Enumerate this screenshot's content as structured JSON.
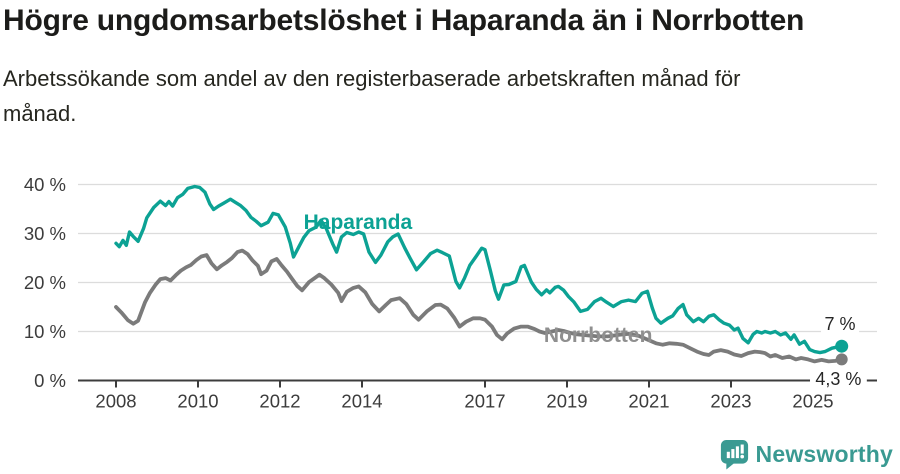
{
  "header": {
    "title": "Högre ungdomsarbetslöshet i Haparanda än i Norrbotten",
    "subtitle_lines": [
      "Arbetssökande som andel av den registerbaserade arbetskraften månad för",
      "månad."
    ]
  },
  "logo": {
    "text": "Newsworthy",
    "color": "#3a9a92"
  },
  "colors": {
    "haparanda": "#0ca294",
    "norrbotten": "#7b7b7b",
    "norrbotten_label": "#8f8f8f",
    "grid": "#dcdcdc",
    "axis": "#3c3c3c",
    "tick_text": "#3c3c3c",
    "annotation_text": "#262626"
  },
  "chart_data": {
    "type": "line",
    "title": "Högre ungdomsarbetslöshet i Haparanda än i Norrbotten",
    "subtitle": "Arbetssökande som andel av den registerbaserade arbetskraften månad för månad.",
    "xlabel": "",
    "ylabel": "",
    "ylim": [
      0,
      40
    ],
    "xlim": [
      2007.1,
      2026.6
    ],
    "grid": "horizontal",
    "legend_position": "inline-labels",
    "y_ticks": [
      {
        "value": 0,
        "label": "0 %"
      },
      {
        "value": 10,
        "label": "10 %"
      },
      {
        "value": 20,
        "label": "20 %"
      },
      {
        "value": 30,
        "label": "30 %"
      },
      {
        "value": 40,
        "label": "40 %"
      }
    ],
    "x_ticks": [
      {
        "value": 2008,
        "label": "2008"
      },
      {
        "value": 2010,
        "label": "2010"
      },
      {
        "value": 2012,
        "label": "2012"
      },
      {
        "value": 2014,
        "label": "2014"
      },
      {
        "value": 2017,
        "label": "2017"
      },
      {
        "value": 2019,
        "label": "2019"
      },
      {
        "value": 2021,
        "label": "2021"
      },
      {
        "value": 2023,
        "label": "2023"
      },
      {
        "value": 2025,
        "label": "2025"
      }
    ],
    "series": [
      {
        "name": "Norrbotten",
        "color": "#7b7b7b",
        "stroke_width": 3.8,
        "end_dot_radius": 6,
        "points": [
          [
            2008.0,
            15.0
          ],
          [
            2008.13,
            13.9
          ],
          [
            2008.29,
            12.3
          ],
          [
            2008.42,
            11.6
          ],
          [
            2008.54,
            12.2
          ],
          [
            2008.71,
            16.0
          ],
          [
            2008.83,
            17.9
          ],
          [
            2008.96,
            19.5
          ],
          [
            2009.08,
            20.7
          ],
          [
            2009.21,
            20.9
          ],
          [
            2009.33,
            20.4
          ],
          [
            2009.46,
            21.5
          ],
          [
            2009.58,
            22.4
          ],
          [
            2009.71,
            23.1
          ],
          [
            2009.83,
            23.6
          ],
          [
            2009.96,
            24.6
          ],
          [
            2010.08,
            25.3
          ],
          [
            2010.21,
            25.6
          ],
          [
            2010.33,
            23.9
          ],
          [
            2010.46,
            22.7
          ],
          [
            2010.58,
            23.5
          ],
          [
            2010.71,
            24.2
          ],
          [
            2010.83,
            25.0
          ],
          [
            2010.96,
            26.2
          ],
          [
            2011.08,
            26.5
          ],
          [
            2011.21,
            25.8
          ],
          [
            2011.33,
            24.5
          ],
          [
            2011.46,
            23.4
          ],
          [
            2011.54,
            21.7
          ],
          [
            2011.67,
            22.4
          ],
          [
            2011.79,
            24.3
          ],
          [
            2011.92,
            24.8
          ],
          [
            2012.04,
            23.5
          ],
          [
            2012.17,
            22.2
          ],
          [
            2012.29,
            20.8
          ],
          [
            2012.42,
            19.3
          ],
          [
            2012.54,
            18.4
          ],
          [
            2012.71,
            20.1
          ],
          [
            2012.83,
            20.8
          ],
          [
            2012.96,
            21.6
          ],
          [
            2013.08,
            20.9
          ],
          [
            2013.25,
            19.6
          ],
          [
            2013.42,
            17.9
          ],
          [
            2013.5,
            16.2
          ],
          [
            2013.63,
            18.1
          ],
          [
            2013.79,
            18.9
          ],
          [
            2013.92,
            19.2
          ],
          [
            2014.08,
            18.0
          ],
          [
            2014.25,
            15.6
          ],
          [
            2014.42,
            14.1
          ],
          [
            2014.58,
            15.4
          ],
          [
            2014.71,
            16.4
          ],
          [
            2014.92,
            16.8
          ],
          [
            2015.08,
            15.6
          ],
          [
            2015.25,
            13.4
          ],
          [
            2015.38,
            12.4
          ],
          [
            2015.58,
            14.1
          ],
          [
            2015.79,
            15.4
          ],
          [
            2015.92,
            15.5
          ],
          [
            2016.08,
            14.7
          ],
          [
            2016.25,
            12.8
          ],
          [
            2016.38,
            11.0
          ],
          [
            2016.54,
            12.0
          ],
          [
            2016.71,
            12.7
          ],
          [
            2016.88,
            12.7
          ],
          [
            2017.0,
            12.4
          ],
          [
            2017.17,
            11.0
          ],
          [
            2017.29,
            9.3
          ],
          [
            2017.42,
            8.4
          ],
          [
            2017.54,
            9.6
          ],
          [
            2017.71,
            10.6
          ],
          [
            2017.88,
            11.0
          ],
          [
            2018.04,
            11.0
          ],
          [
            2018.21,
            10.5
          ],
          [
            2018.33,
            10.0
          ],
          [
            2018.46,
            9.7
          ],
          [
            2018.63,
            10.0
          ],
          [
            2018.79,
            10.3
          ],
          [
            2018.92,
            10.1
          ],
          [
            2019.08,
            9.7
          ],
          [
            2019.25,
            9.4
          ],
          [
            2019.5,
            9.2
          ],
          [
            2019.75,
            9.0
          ],
          [
            2020.0,
            9.0
          ],
          [
            2020.25,
            9.3
          ],
          [
            2020.5,
            9.5
          ],
          [
            2020.75,
            9.1
          ],
          [
            2021.0,
            8.2
          ],
          [
            2021.17,
            7.6
          ],
          [
            2021.33,
            7.3
          ],
          [
            2021.5,
            7.6
          ],
          [
            2021.67,
            7.5
          ],
          [
            2021.83,
            7.3
          ],
          [
            2022.0,
            6.6
          ],
          [
            2022.17,
            5.9
          ],
          [
            2022.33,
            5.4
          ],
          [
            2022.46,
            5.2
          ],
          [
            2022.58,
            5.9
          ],
          [
            2022.75,
            6.2
          ],
          [
            2022.92,
            5.9
          ],
          [
            2023.08,
            5.3
          ],
          [
            2023.25,
            5.0
          ],
          [
            2023.42,
            5.6
          ],
          [
            2023.58,
            5.9
          ],
          [
            2023.71,
            5.8
          ],
          [
            2023.83,
            5.6
          ],
          [
            2023.96,
            4.9
          ],
          [
            2024.08,
            5.2
          ],
          [
            2024.25,
            4.6
          ],
          [
            2024.42,
            4.9
          ],
          [
            2024.58,
            4.3
          ],
          [
            2024.71,
            4.6
          ],
          [
            2024.88,
            4.3
          ],
          [
            2025.04,
            3.9
          ],
          [
            2025.21,
            4.2
          ],
          [
            2025.38,
            3.9
          ],
          [
            2025.54,
            4.0
          ],
          [
            2025.7,
            4.3
          ]
        ],
        "last_value_label": "4,3 %"
      },
      {
        "name": "Haparanda",
        "color": "#0ca294",
        "stroke_width": 3.4,
        "end_dot_radius": 6.5,
        "points": [
          [
            2008.0,
            28.0
          ],
          [
            2008.08,
            27.3
          ],
          [
            2008.17,
            28.6
          ],
          [
            2008.25,
            27.6
          ],
          [
            2008.33,
            30.3
          ],
          [
            2008.42,
            29.4
          ],
          [
            2008.54,
            28.4
          ],
          [
            2008.67,
            31.0
          ],
          [
            2008.75,
            33.2
          ],
          [
            2008.92,
            35.3
          ],
          [
            2009.08,
            36.6
          ],
          [
            2009.21,
            35.7
          ],
          [
            2009.29,
            36.5
          ],
          [
            2009.38,
            35.6
          ],
          [
            2009.5,
            37.3
          ],
          [
            2009.63,
            38.0
          ],
          [
            2009.75,
            39.2
          ],
          [
            2009.92,
            39.6
          ],
          [
            2010.04,
            39.4
          ],
          [
            2010.17,
            38.4
          ],
          [
            2010.29,
            36.0
          ],
          [
            2010.38,
            34.9
          ],
          [
            2010.5,
            35.6
          ],
          [
            2010.63,
            36.2
          ],
          [
            2010.79,
            37.0
          ],
          [
            2010.92,
            36.3
          ],
          [
            2011.04,
            35.7
          ],
          [
            2011.17,
            34.7
          ],
          [
            2011.29,
            33.3
          ],
          [
            2011.42,
            32.5
          ],
          [
            2011.54,
            31.6
          ],
          [
            2011.71,
            32.3
          ],
          [
            2011.83,
            34.1
          ],
          [
            2011.96,
            33.8
          ],
          [
            2012.13,
            31.3
          ],
          [
            2012.25,
            28.0
          ],
          [
            2012.33,
            25.2
          ],
          [
            2012.46,
            27.3
          ],
          [
            2012.58,
            29.2
          ],
          [
            2012.71,
            30.6
          ],
          [
            2012.88,
            31.3
          ],
          [
            2013.0,
            32.7
          ],
          [
            2013.13,
            31.0
          ],
          [
            2013.29,
            27.8
          ],
          [
            2013.38,
            26.2
          ],
          [
            2013.5,
            29.3
          ],
          [
            2013.63,
            30.2
          ],
          [
            2013.79,
            29.8
          ],
          [
            2013.92,
            30.3
          ],
          [
            2014.04,
            29.9
          ],
          [
            2014.17,
            26.2
          ],
          [
            2014.33,
            24.1
          ],
          [
            2014.46,
            25.6
          ],
          [
            2014.63,
            28.3
          ],
          [
            2014.75,
            29.3
          ],
          [
            2014.88,
            29.9
          ],
          [
            2015.04,
            27.1
          ],
          [
            2015.17,
            25.0
          ],
          [
            2015.33,
            22.6
          ],
          [
            2015.5,
            24.2
          ],
          [
            2015.67,
            25.9
          ],
          [
            2015.83,
            26.6
          ],
          [
            2015.96,
            26.1
          ],
          [
            2016.13,
            25.4
          ],
          [
            2016.29,
            20.2
          ],
          [
            2016.38,
            18.9
          ],
          [
            2016.5,
            20.9
          ],
          [
            2016.63,
            23.5
          ],
          [
            2016.79,
            25.4
          ],
          [
            2016.92,
            27.0
          ],
          [
            2017.0,
            26.7
          ],
          [
            2017.13,
            22.5
          ],
          [
            2017.25,
            18.3
          ],
          [
            2017.33,
            16.6
          ],
          [
            2017.46,
            19.5
          ],
          [
            2017.58,
            19.6
          ],
          [
            2017.75,
            20.2
          ],
          [
            2017.88,
            23.2
          ],
          [
            2017.96,
            23.5
          ],
          [
            2018.13,
            20.1
          ],
          [
            2018.25,
            18.6
          ],
          [
            2018.38,
            17.5
          ],
          [
            2018.5,
            18.5
          ],
          [
            2018.58,
            17.9
          ],
          [
            2018.71,
            19.0
          ],
          [
            2018.79,
            19.2
          ],
          [
            2018.92,
            18.4
          ],
          [
            2019.04,
            17.1
          ],
          [
            2019.17,
            16.0
          ],
          [
            2019.33,
            14.1
          ],
          [
            2019.5,
            14.5
          ],
          [
            2019.67,
            16.1
          ],
          [
            2019.83,
            16.8
          ],
          [
            2019.96,
            16.0
          ],
          [
            2020.13,
            15.1
          ],
          [
            2020.33,
            16.1
          ],
          [
            2020.5,
            16.4
          ],
          [
            2020.67,
            16.1
          ],
          [
            2020.83,
            17.8
          ],
          [
            2020.96,
            18.2
          ],
          [
            2021.08,
            14.8
          ],
          [
            2021.17,
            12.7
          ],
          [
            2021.29,
            11.7
          ],
          [
            2021.46,
            12.7
          ],
          [
            2021.58,
            13.2
          ],
          [
            2021.71,
            14.7
          ],
          [
            2021.83,
            15.5
          ],
          [
            2021.92,
            13.4
          ],
          [
            2022.08,
            12.0
          ],
          [
            2022.21,
            12.7
          ],
          [
            2022.33,
            12.0
          ],
          [
            2022.46,
            13.1
          ],
          [
            2022.58,
            13.4
          ],
          [
            2022.71,
            12.4
          ],
          [
            2022.83,
            11.7
          ],
          [
            2022.96,
            11.3
          ],
          [
            2023.08,
            10.3
          ],
          [
            2023.17,
            10.7
          ],
          [
            2023.29,
            8.6
          ],
          [
            2023.42,
            7.7
          ],
          [
            2023.54,
            9.4
          ],
          [
            2023.63,
            10.0
          ],
          [
            2023.75,
            9.7
          ],
          [
            2023.83,
            10.0
          ],
          [
            2023.96,
            9.7
          ],
          [
            2024.08,
            10.0
          ],
          [
            2024.21,
            9.3
          ],
          [
            2024.33,
            9.7
          ],
          [
            2024.46,
            8.4
          ],
          [
            2024.54,
            9.3
          ],
          [
            2024.67,
            7.4
          ],
          [
            2024.79,
            8.0
          ],
          [
            2024.92,
            6.3
          ],
          [
            2025.04,
            5.9
          ],
          [
            2025.17,
            5.7
          ],
          [
            2025.29,
            5.9
          ],
          [
            2025.46,
            6.6
          ],
          [
            2025.63,
            6.9
          ],
          [
            2025.7,
            7.0
          ]
        ],
        "last_value_label": "7 %"
      }
    ],
    "annotations": [
      {
        "id": "haparanda-series-label",
        "text": "Haparanda",
        "x": 2013.9,
        "y": 30.9,
        "color": "#0ca294",
        "bold": true,
        "size": 21,
        "bg": false
      },
      {
        "id": "norrbotten-series-label",
        "text": "Norrbotten",
        "x": 2019.76,
        "y": 7.9,
        "color": "#8f8f8f",
        "bold": true,
        "size": 21,
        "bg": false
      },
      {
        "id": "haparanda-end-value",
        "text": "7 %",
        "x": 2025.66,
        "y": 10.3,
        "color": "#262626",
        "bold": false,
        "size": 18,
        "bg": true
      },
      {
        "id": "norrbotten-end-value",
        "text": "4,3 %",
        "x": 2025.62,
        "y": -0.9,
        "color": "#262626",
        "bold": false,
        "size": 18,
        "bg": true
      }
    ]
  }
}
